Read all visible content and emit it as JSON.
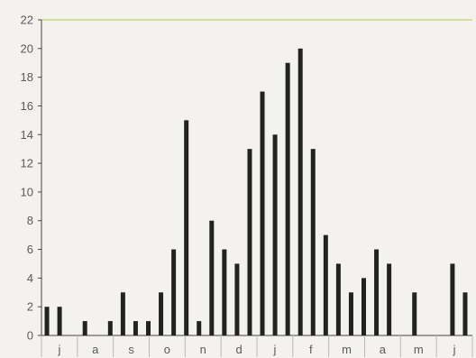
{
  "chart_data": {
    "type": "bar",
    "title": "",
    "xlabel": "",
    "ylabel": "",
    "ylim": [
      0,
      22
    ],
    "yticks": [
      0,
      2,
      4,
      6,
      8,
      10,
      12,
      14,
      16,
      18,
      20,
      22
    ],
    "month_labels": [
      "j",
      "a",
      "s",
      "o",
      "n",
      "d",
      "j",
      "f",
      "m",
      "a",
      "m",
      "j"
    ],
    "weeks_per_month": 4,
    "values": [
      2,
      2,
      0,
      1,
      0,
      1,
      3,
      1,
      1,
      3,
      6,
      15,
      1,
      8,
      6,
      5,
      13,
      17,
      14,
      19,
      20,
      13,
      7,
      5,
      3,
      4,
      6,
      5,
      0,
      3,
      0,
      0,
      5,
      3
    ],
    "colors": {
      "bar": "#222222",
      "axis": "#444444",
      "grid_top": "#c9d97a",
      "month_divider": "#b9b9b9"
    },
    "grid": false
  }
}
